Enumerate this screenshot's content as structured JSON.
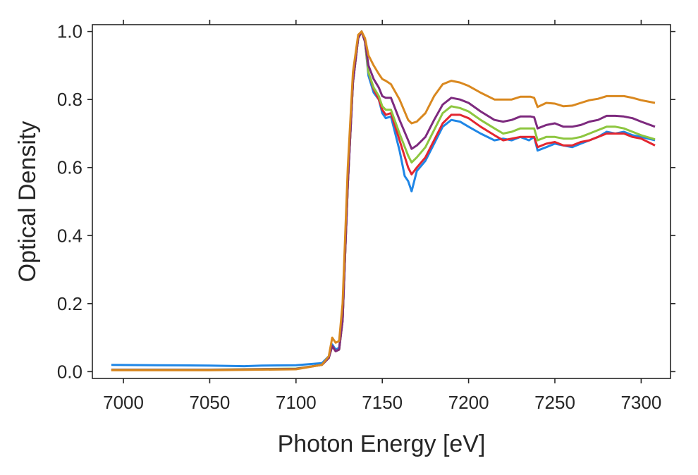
{
  "chart_data": {
    "type": "line",
    "title": "",
    "xlabel": "Photon Energy [eV]",
    "ylabel": "Optical Density",
    "xlim": [
      6982,
      7317
    ],
    "ylim": [
      -0.02,
      1.02
    ],
    "xticks": [
      7000,
      7050,
      7100,
      7150,
      7200,
      7250,
      7300
    ],
    "yticks": [
      0.0,
      0.2,
      0.4,
      0.6,
      0.8,
      1.0
    ],
    "ytick_labels": [
      "0.0",
      "0.2",
      "0.4",
      "0.6",
      "0.8",
      "1.0"
    ],
    "grid": false,
    "legend": "none",
    "series": [
      {
        "color": "#1f86e6",
        "x": [
          6993,
          7020,
          7050,
          7070,
          7080,
          7100,
          7115,
          7119,
          7121,
          7123,
          7125,
          7127,
          7130,
          7133,
          7136,
          7138,
          7140,
          7142,
          7145,
          7148,
          7150,
          7152,
          7155,
          7160,
          7163,
          7165,
          7166,
          7167,
          7170,
          7175,
          7180,
          7185,
          7190,
          7195,
          7200,
          7207,
          7215,
          7220,
          7225,
          7230,
          7235,
          7238,
          7240,
          7245,
          7250,
          7255,
          7260,
          7265,
          7270,
          7275,
          7280,
          7285,
          7290,
          7295,
          7300,
          7308
        ],
        "y": [
          0.02,
          0.019,
          0.018,
          0.016,
          0.018,
          0.019,
          0.025,
          0.045,
          0.08,
          0.065,
          0.07,
          0.15,
          0.55,
          0.85,
          0.98,
          1.0,
          0.97,
          0.87,
          0.82,
          0.8,
          0.76,
          0.745,
          0.75,
          0.65,
          0.575,
          0.56,
          0.545,
          0.53,
          0.59,
          0.62,
          0.67,
          0.72,
          0.74,
          0.735,
          0.72,
          0.7,
          0.68,
          0.685,
          0.68,
          0.69,
          0.68,
          0.69,
          0.65,
          0.66,
          0.67,
          0.665,
          0.66,
          0.67,
          0.68,
          0.69,
          0.705,
          0.7,
          0.705,
          0.695,
          0.69,
          0.68
        ]
      },
      {
        "color": "#e32630",
        "x": [
          6993,
          7050,
          7100,
          7115,
          7119,
          7121,
          7123,
          7125,
          7127,
          7130,
          7133,
          7136,
          7138,
          7140,
          7142,
          7145,
          7148,
          7150,
          7152,
          7155,
          7160,
          7165,
          7167,
          7170,
          7175,
          7180,
          7185,
          7190,
          7195,
          7200,
          7207,
          7215,
          7220,
          7225,
          7230,
          7236,
          7238,
          7240,
          7245,
          7250,
          7255,
          7260,
          7265,
          7270,
          7275,
          7280,
          7285,
          7290,
          7295,
          7300,
          7308
        ],
        "y": [
          0.005,
          0.005,
          0.008,
          0.02,
          0.04,
          0.075,
          0.06,
          0.065,
          0.15,
          0.55,
          0.85,
          0.98,
          1.0,
          0.97,
          0.88,
          0.83,
          0.8,
          0.77,
          0.755,
          0.76,
          0.68,
          0.6,
          0.58,
          0.6,
          0.63,
          0.68,
          0.73,
          0.755,
          0.755,
          0.745,
          0.72,
          0.695,
          0.68,
          0.685,
          0.69,
          0.69,
          0.69,
          0.66,
          0.67,
          0.675,
          0.665,
          0.665,
          0.675,
          0.68,
          0.69,
          0.7,
          0.7,
          0.7,
          0.69,
          0.685,
          0.665
        ]
      },
      {
        "color": "#8dc63f",
        "x": [
          6993,
          7050,
          7100,
          7115,
          7119,
          7121,
          7123,
          7125,
          7127,
          7130,
          7133,
          7136,
          7138,
          7140,
          7142,
          7145,
          7148,
          7150,
          7152,
          7155,
          7160,
          7165,
          7167,
          7170,
          7175,
          7180,
          7185,
          7190,
          7195,
          7200,
          7207,
          7215,
          7220,
          7225,
          7230,
          7236,
          7238,
          7240,
          7245,
          7250,
          7255,
          7260,
          7265,
          7270,
          7275,
          7280,
          7285,
          7290,
          7295,
          7300,
          7308
        ],
        "y": [
          0.006,
          0.006,
          0.009,
          0.02,
          0.04,
          0.075,
          0.06,
          0.065,
          0.15,
          0.55,
          0.85,
          0.98,
          1.0,
          0.97,
          0.88,
          0.835,
          0.81,
          0.78,
          0.77,
          0.77,
          0.7,
          0.635,
          0.615,
          0.63,
          0.66,
          0.71,
          0.76,
          0.78,
          0.775,
          0.765,
          0.74,
          0.715,
          0.7,
          0.705,
          0.715,
          0.715,
          0.715,
          0.68,
          0.69,
          0.69,
          0.685,
          0.685,
          0.69,
          0.7,
          0.71,
          0.72,
          0.72,
          0.715,
          0.705,
          0.695,
          0.683
        ]
      },
      {
        "color": "#7d2a7e",
        "x": [
          6993,
          7050,
          7100,
          7115,
          7119,
          7121,
          7123,
          7125,
          7127,
          7130,
          7133,
          7136,
          7138,
          7140,
          7142,
          7145,
          7148,
          7150,
          7152,
          7155,
          7160,
          7165,
          7167,
          7170,
          7175,
          7180,
          7185,
          7190,
          7195,
          7200,
          7207,
          7215,
          7220,
          7225,
          7230,
          7236,
          7238,
          7240,
          7245,
          7250,
          7255,
          7260,
          7265,
          7270,
          7275,
          7280,
          7285,
          7290,
          7295,
          7300,
          7308
        ],
        "y": [
          0.005,
          0.005,
          0.008,
          0.02,
          0.04,
          0.075,
          0.06,
          0.065,
          0.15,
          0.55,
          0.85,
          0.98,
          1.0,
          0.97,
          0.9,
          0.86,
          0.835,
          0.81,
          0.805,
          0.805,
          0.74,
          0.68,
          0.655,
          0.665,
          0.69,
          0.74,
          0.785,
          0.805,
          0.8,
          0.79,
          0.765,
          0.74,
          0.735,
          0.74,
          0.75,
          0.75,
          0.748,
          0.715,
          0.725,
          0.73,
          0.72,
          0.72,
          0.725,
          0.735,
          0.74,
          0.752,
          0.752,
          0.75,
          0.745,
          0.735,
          0.72
        ]
      },
      {
        "color": "#d9881f",
        "x": [
          6993,
          7050,
          7100,
          7115,
          7119,
          7121,
          7123,
          7125,
          7127,
          7130,
          7133,
          7136,
          7138,
          7140,
          7142,
          7145,
          7148,
          7150,
          7152,
          7155,
          7160,
          7165,
          7167,
          7170,
          7175,
          7180,
          7185,
          7190,
          7195,
          7200,
          7207,
          7215,
          7220,
          7225,
          7230,
          7236,
          7238,
          7240,
          7245,
          7250,
          7255,
          7260,
          7265,
          7270,
          7275,
          7280,
          7285,
          7290,
          7295,
          7300,
          7308
        ],
        "y": [
          0.004,
          0.004,
          0.007,
          0.02,
          0.045,
          0.1,
          0.085,
          0.09,
          0.2,
          0.6,
          0.88,
          0.99,
          1.0,
          0.98,
          0.93,
          0.9,
          0.875,
          0.86,
          0.855,
          0.845,
          0.8,
          0.74,
          0.73,
          0.735,
          0.76,
          0.81,
          0.845,
          0.855,
          0.85,
          0.84,
          0.82,
          0.8,
          0.8,
          0.8,
          0.808,
          0.808,
          0.805,
          0.778,
          0.79,
          0.788,
          0.78,
          0.782,
          0.79,
          0.798,
          0.802,
          0.81,
          0.81,
          0.81,
          0.805,
          0.798,
          0.79
        ]
      }
    ]
  }
}
